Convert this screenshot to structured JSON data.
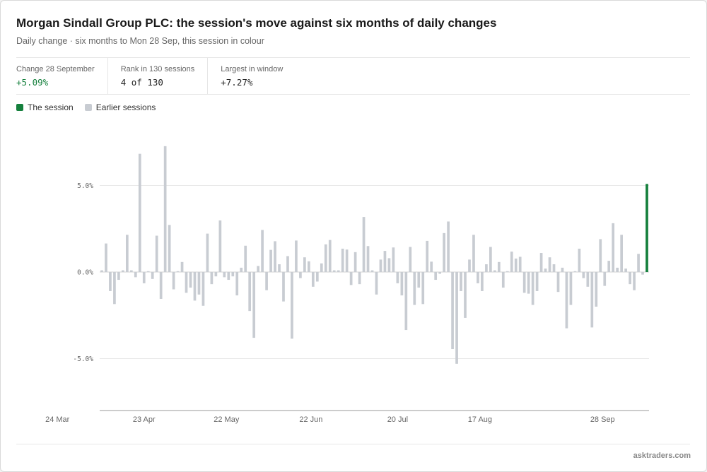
{
  "header": {
    "title": "Morgan Sindall Group PLC: the session's move against six months of daily changes",
    "subtitle": "Daily change · six months to Mon 28 Sep, this session in colour"
  },
  "stats": [
    {
      "label": "Change 28 September",
      "value": "+5.09%",
      "color": "#15803d"
    },
    {
      "label": "Rank in 130 sessions",
      "value": "4 of 130",
      "color": "#222222"
    },
    {
      "label": "Largest in window",
      "value": "+7.27%",
      "color": "#222222"
    }
  ],
  "legend": {
    "session": {
      "label": "The session",
      "color": "#15803d"
    },
    "earlier": {
      "label": "Earlier sessions",
      "color": "#c8ccd2"
    }
  },
  "chart_data": {
    "type": "bar",
    "highlight_index": 129,
    "ylim": [
      -8,
      8
    ],
    "yticks": [
      {
        "value": 5,
        "label": "5.0%"
      },
      {
        "value": 0,
        "label": "0.0%"
      },
      {
        "value": -5,
        "label": "-5.0%"
      }
    ],
    "xticks": [
      {
        "index": -10.5,
        "label": "24 Mar"
      },
      {
        "index": 10,
        "label": "23 Apr"
      },
      {
        "index": 29.5,
        "label": "22 May"
      },
      {
        "index": 49.5,
        "label": "22 Jun"
      },
      {
        "index": 70,
        "label": "20 Jul"
      },
      {
        "index": 89.5,
        "label": "17 Aug"
      },
      {
        "index": 118.5,
        "label": "28 Sep"
      }
    ],
    "values": [
      0.1,
      1.65,
      -1.1,
      -1.85,
      -0.45,
      0.1,
      2.15,
      0.1,
      -0.3,
      6.83,
      -0.65,
      0.05,
      -0.4,
      2.1,
      -1.55,
      7.27,
      2.72,
      -1.0,
      0.05,
      0.58,
      -1.2,
      -0.9,
      -1.65,
      -1.3,
      -1.95,
      2.22,
      -0.7,
      -0.25,
      2.98,
      -0.3,
      -0.45,
      -0.25,
      -1.35,
      0.25,
      1.52,
      -2.25,
      -3.8,
      0.35,
      2.43,
      -1.05,
      1.28,
      1.78,
      0.45,
      -1.7,
      0.92,
      -3.85,
      1.82,
      -0.35,
      0.85,
      0.62,
      -0.85,
      -0.55,
      0.5,
      1.6,
      1.85,
      0.1,
      0.1,
      1.35,
      1.3,
      -0.75,
      1.15,
      -0.7,
      3.18,
      1.5,
      0.1,
      -1.3,
      0.72,
      1.22,
      0.8,
      1.42,
      -0.65,
      -1.35,
      -3.35,
      1.45,
      -1.9,
      -0.9,
      -1.85,
      1.8,
      0.6,
      -0.45,
      -0.1,
      2.25,
      2.92,
      -4.45,
      -5.3,
      -1.1,
      -2.65,
      0.72,
      2.15,
      -0.65,
      -1.1,
      0.45,
      1.45,
      0.1,
      0.58,
      -0.9,
      0.05,
      1.18,
      0.78,
      0.88,
      -1.2,
      -1.25,
      -1.9,
      -1.1,
      1.1,
      0.2,
      0.85,
      0.45,
      -1.15,
      0.25,
      -3.25,
      -1.9,
      0.05,
      1.35,
      -0.35,
      -0.85,
      -3.2,
      -2.0,
      1.9,
      -0.8,
      0.65,
      2.82,
      0.25,
      2.15,
      0.2,
      -0.7,
      -1.05,
      1.05,
      -0.15,
      5.09
    ]
  }
}
